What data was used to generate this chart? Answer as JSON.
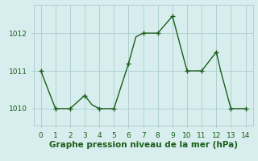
{
  "x": [
    0,
    1,
    2,
    3,
    3.5,
    4,
    5,
    6,
    6.5,
    7,
    8,
    9,
    10,
    11,
    12,
    12.3,
    13,
    14
  ],
  "y": [
    1011.0,
    1010.0,
    1010.0,
    1010.35,
    1010.1,
    1010.0,
    1010.0,
    1011.2,
    1011.9,
    1012.0,
    1012.0,
    1012.45,
    1011.0,
    1011.0,
    1011.5,
    1011.0,
    1010.0,
    1010.0
  ],
  "marker_x": [
    0,
    1,
    2,
    3,
    4,
    5,
    6,
    7,
    8,
    9,
    10,
    11,
    12,
    13,
    14
  ],
  "marker_y": [
    1011.0,
    1010.0,
    1010.0,
    1010.35,
    1010.0,
    1010.0,
    1011.2,
    1012.0,
    1012.0,
    1012.45,
    1011.0,
    1011.0,
    1011.5,
    1010.0,
    1010.0
  ],
  "line_color": "#1a5e1a",
  "marker_color": "#1a5e1a",
  "bg_color": "#d8eeee",
  "grid_color": "#aacccc",
  "xlabel": "Graphe pression niveau de la mer (hPa)",
  "xlim": [
    -0.5,
    14.5
  ],
  "ylim": [
    1009.55,
    1012.75
  ],
  "yticks": [
    1010,
    1011,
    1012
  ],
  "xticks": [
    0,
    1,
    2,
    3,
    4,
    5,
    6,
    7,
    8,
    9,
    10,
    11,
    12,
    13,
    14
  ],
  "xlabel_fontsize": 7.5,
  "tick_fontsize": 6.5
}
